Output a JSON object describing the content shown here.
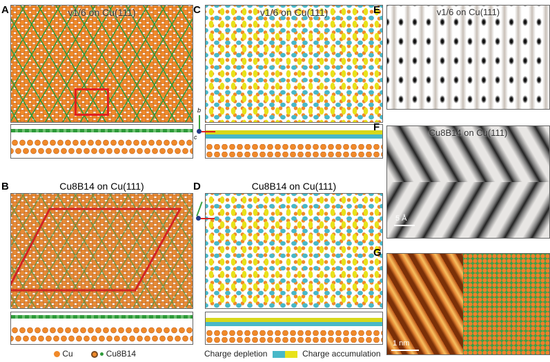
{
  "panels": {
    "A": {
      "label": "A",
      "title": "v1/6 on Cu(111)"
    },
    "B": {
      "label": "B",
      "title": "Cu8B14 on Cu(111)"
    },
    "C": {
      "label": "C",
      "title": "v1/6 on Cu(111)"
    },
    "D": {
      "label": "D",
      "title": "Cu8B14 on Cu(111)"
    },
    "E": {
      "label": "E",
      "title": "v1/6 on Cu(111)"
    },
    "F": {
      "label": "F",
      "title": "Cu8B14 on Cu(111)",
      "scale": "5 Å"
    },
    "G": {
      "label": "G",
      "scale": "1 nm"
    }
  },
  "axes": {
    "a": "a",
    "b": "b",
    "c": "c"
  },
  "legend": {
    "cu": "Cu",
    "cu8b14": "Cu8B14",
    "depletion": "Charge depletion",
    "accumulation": "Charge accumulation"
  },
  "colors": {
    "cu": "#f08a2a",
    "boron": "#2e9a3a",
    "depletion": "#48b8c8",
    "accumulation": "#e8e21a",
    "cell": "#e02020"
  }
}
